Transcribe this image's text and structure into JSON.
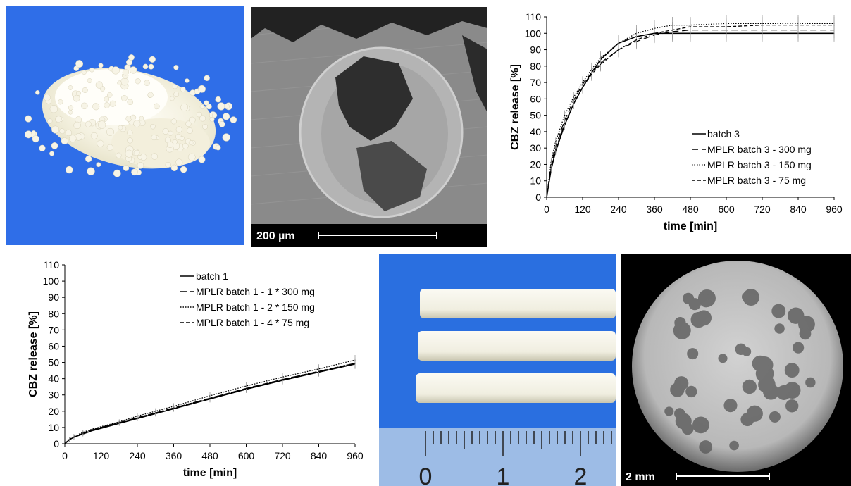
{
  "photos": {
    "pellets": {
      "caption": ""
    },
    "sem": {
      "scale_label": "200 µm"
    },
    "extrudates": {
      "ruler_labels": [
        "0",
        "1",
        "2"
      ]
    },
    "cross_section": {
      "scale_label": "2 mm"
    }
  },
  "chart_data": [
    {
      "type": "line",
      "xlabel": "time [min]",
      "ylabel": "CBZ release [%]",
      "xlim": [
        0,
        960
      ],
      "ylim": [
        0,
        110
      ],
      "xticks": [
        0,
        120,
        240,
        360,
        480,
        600,
        720,
        840,
        960
      ],
      "yticks": [
        0,
        10,
        20,
        30,
        40,
        50,
        60,
        70,
        80,
        90,
        100,
        110
      ],
      "grid": false,
      "legend_position": "right-center",
      "series": [
        {
          "name": "batch 3",
          "style": "solid",
          "x": [
            0,
            15,
            30,
            60,
            90,
            120,
            150,
            180,
            240,
            300,
            360,
            420,
            480,
            600,
            720,
            840,
            960
          ],
          "y": [
            0,
            17,
            28,
            44,
            57,
            67,
            76,
            84,
            94,
            98,
            100,
            100,
            100,
            100,
            100,
            100,
            100
          ]
        },
        {
          "name": "MPLR batch 3 - 300 mg",
          "style": "longdash",
          "x": [
            0,
            15,
            30,
            60,
            90,
            120,
            150,
            180,
            240,
            300,
            360,
            420,
            480,
            600,
            720,
            840,
            960
          ],
          "y": [
            0,
            20,
            31,
            47,
            59,
            69,
            76,
            82,
            90,
            95,
            99,
            101,
            102,
            102,
            102,
            102,
            102
          ]
        },
        {
          "name": "MPLR batch 3 - 150 mg",
          "style": "dotted",
          "x": [
            0,
            15,
            30,
            60,
            90,
            120,
            150,
            180,
            240,
            300,
            360,
            420,
            480,
            600,
            720,
            840,
            960
          ],
          "y": [
            0,
            22,
            34,
            50,
            61,
            70,
            78,
            85,
            94,
            100,
            103,
            105,
            105,
            106,
            106,
            106,
            106
          ]
        },
        {
          "name": "MPLR batch 3 - 75 mg",
          "style": "shortdash",
          "x": [
            0,
            15,
            30,
            60,
            90,
            120,
            150,
            180,
            240,
            300,
            360,
            420,
            480,
            600,
            720,
            840,
            960
          ],
          "y": [
            0,
            18,
            29,
            45,
            57,
            67,
            75,
            81,
            90,
            96,
            100,
            102,
            104,
            104,
            105,
            105,
            105
          ]
        }
      ]
    },
    {
      "type": "line",
      "xlabel": "time [min]",
      "ylabel": "CBZ release [%]",
      "xlim": [
        0,
        960
      ],
      "ylim": [
        0,
        110
      ],
      "xticks": [
        0,
        120,
        240,
        360,
        480,
        600,
        720,
        840,
        960
      ],
      "yticks": [
        0,
        10,
        20,
        30,
        40,
        50,
        60,
        70,
        80,
        90,
        100,
        110
      ],
      "grid": false,
      "legend_position": "top-center",
      "series": [
        {
          "name": "batch 1",
          "style": "solid",
          "x": [
            0,
            15,
            30,
            60,
            90,
            120,
            180,
            240,
            300,
            360,
            480,
            600,
            720,
            840,
            960
          ],
          "y": [
            0,
            2.5,
            4,
            6,
            8,
            9.5,
            12.5,
            15.5,
            18.5,
            21.5,
            27.5,
            33.5,
            39,
            44,
            49
          ]
        },
        {
          "name": "MPLR batch 1 - 1 * 300 mg",
          "style": "longdash",
          "x": [
            0,
            15,
            30,
            60,
            90,
            120,
            180,
            240,
            300,
            360,
            480,
            600,
            720,
            840,
            960
          ],
          "y": [
            0,
            2.5,
            4,
            6.5,
            8.5,
            10,
            13,
            16,
            19,
            22,
            28,
            34,
            39.5,
            44.5,
            49.5
          ]
        },
        {
          "name": "MPLR batch 1 - 2 * 150 mg",
          "style": "dotted",
          "x": [
            0,
            15,
            30,
            60,
            90,
            120,
            180,
            240,
            300,
            360,
            480,
            600,
            720,
            840,
            960
          ],
          "y": [
            0,
            2.8,
            4.5,
            7,
            9,
            10.5,
            13.5,
            17,
            20,
            23,
            29.5,
            35.5,
            41,
            46,
            51.5
          ]
        },
        {
          "name": "MPLR batch 1 - 4 * 75 mg",
          "style": "shortdash",
          "x": [
            0,
            15,
            30,
            60,
            90,
            120,
            180,
            240,
            300,
            360,
            480,
            600,
            720,
            840,
            960
          ],
          "y": [
            0,
            2.5,
            4,
            6.5,
            8.5,
            10,
            13,
            16,
            19,
            22,
            28,
            34,
            39.5,
            44.5,
            49.5
          ]
        }
      ]
    }
  ]
}
